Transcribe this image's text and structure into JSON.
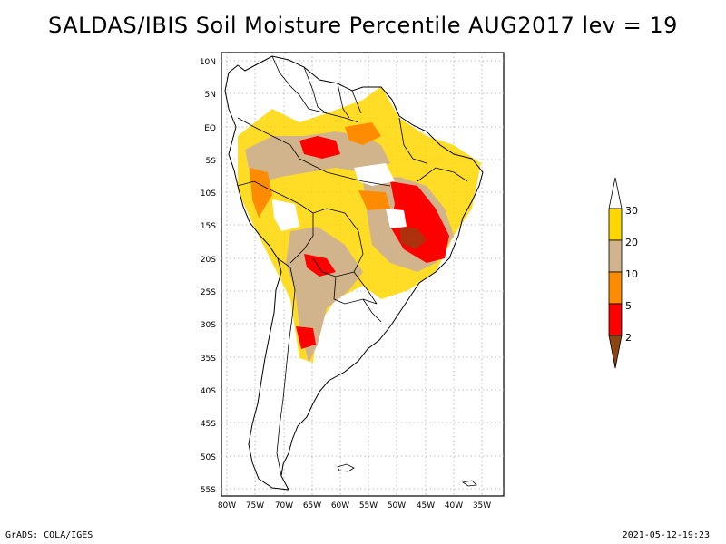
{
  "title": "SALDAS/IBIS Soil Moisture Percentile AUG2017 lev = 19",
  "map": {
    "lat_labels": [
      "10N",
      "5N",
      "EQ",
      "5S",
      "10S",
      "15S",
      "20S",
      "25S",
      "30S",
      "35S",
      "40S",
      "45S",
      "50S",
      "55S"
    ],
    "lon_labels": [
      "80W",
      "75W",
      "70W",
      "65W",
      "60W",
      "55W",
      "50W",
      "45W",
      "40W",
      "35W"
    ]
  },
  "legend": {
    "levels": [
      "2",
      "5",
      "10",
      "20",
      "30"
    ],
    "colors": {
      "below_2": "#8b4513",
      "2_5": "#ff0000",
      "5_10": "#ff8c00",
      "10_20": "#d2b48c",
      "20_30": "#ffd700",
      "above_30": "#ffffff"
    }
  },
  "footer": {
    "left": "GrADS: COLA/IGES",
    "right": "2021-05-12-19:23"
  }
}
